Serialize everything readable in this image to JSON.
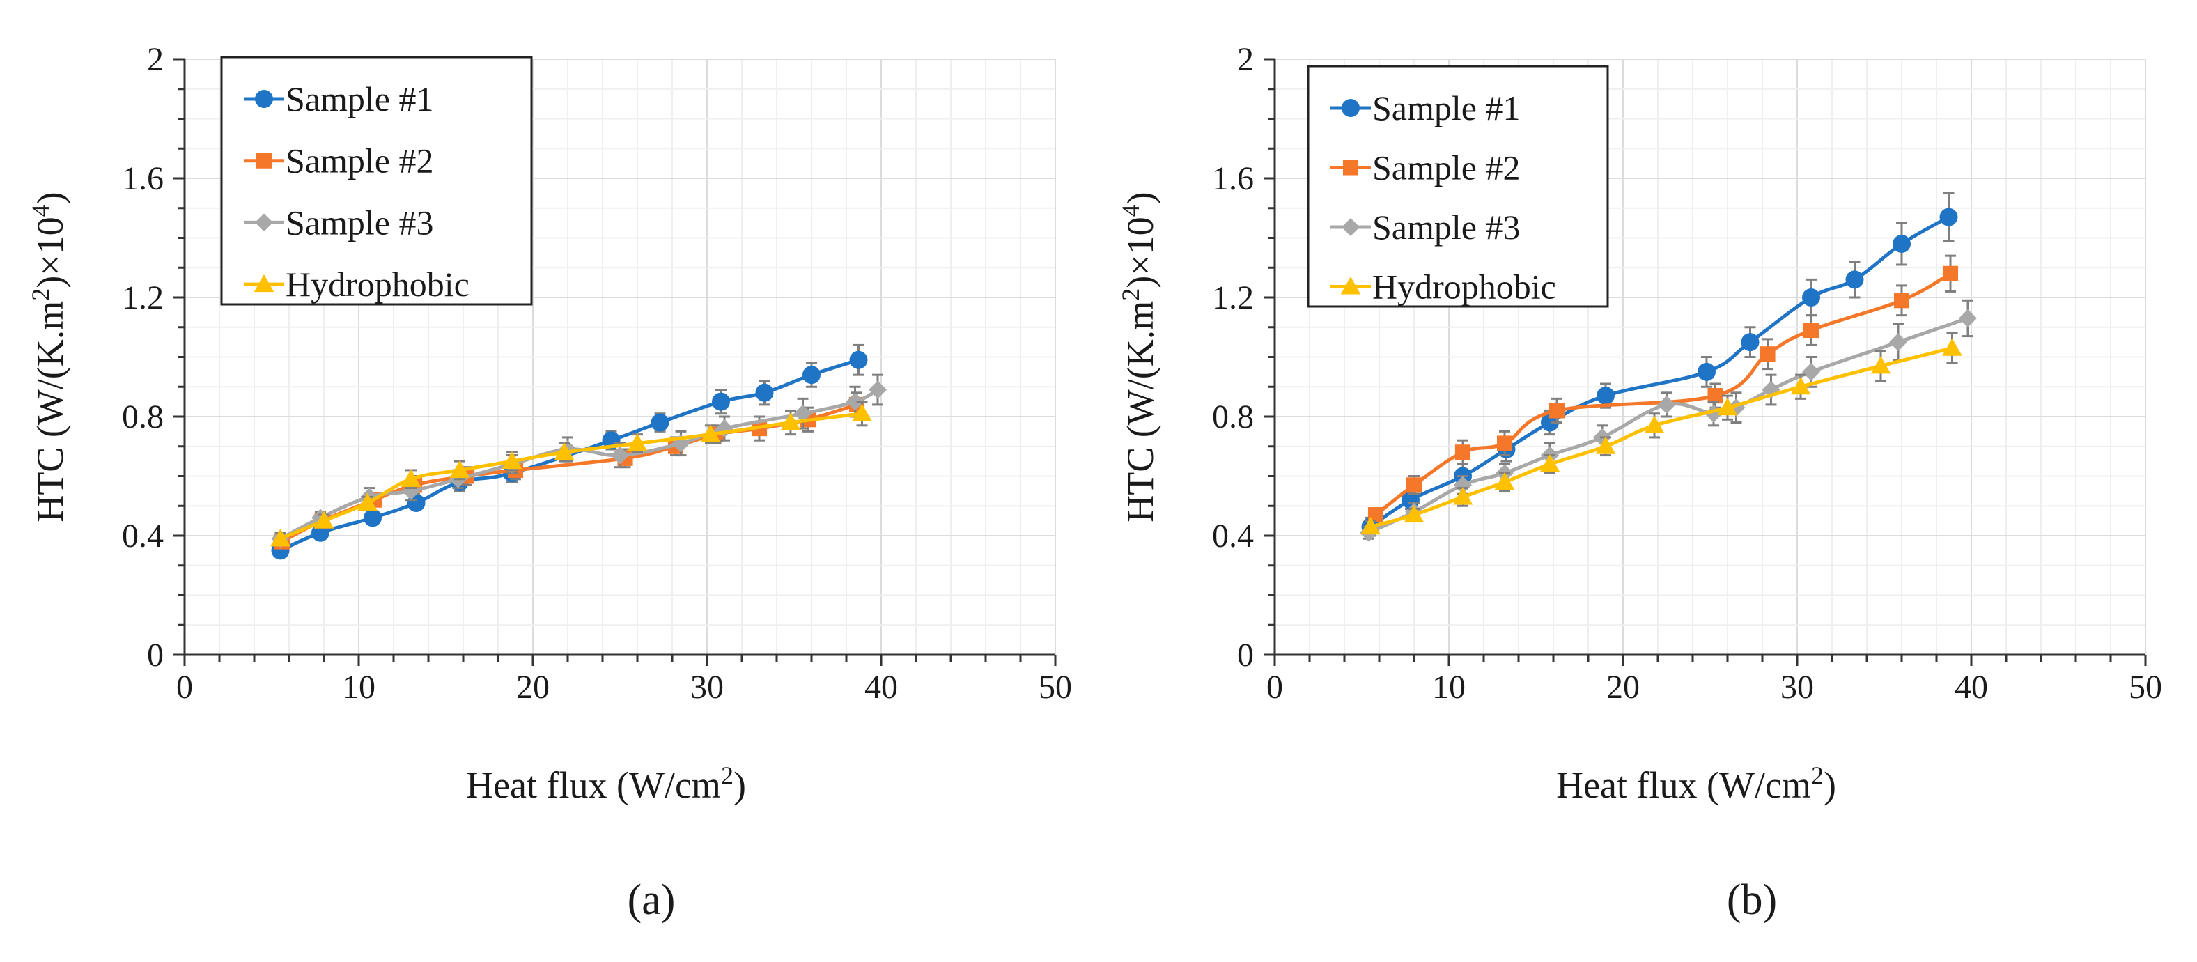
{
  "colors": {
    "sample1": "#1F74C6",
    "sample2": "#F5782A",
    "sample3": "#A8A8A8",
    "hydrophobic": "#FFC000",
    "grid_major": "#DCDCDC",
    "grid_minor": "#EFEFEF",
    "axis": "#333333",
    "error_bar": "#7F7F7F"
  },
  "chart_data": [
    {
      "type": "line",
      "panel_label": "(a)",
      "title": "",
      "xlabel": "Heat flux (W/cm",
      "xlabel_sup": "2",
      "xlabel_end": ")",
      "ylabel": "HTC (W/(K.m",
      "ylabel_sup": "2",
      "ylabel_mid": ")×10",
      "ylabel_sup2": "4",
      "ylabel_end": ")",
      "xlim": [
        0,
        50
      ],
      "ylim": [
        0,
        2
      ],
      "xticks": [
        "0",
        "10",
        "20",
        "30",
        "40",
        "50"
      ],
      "yticks": [
        "0",
        "0.4",
        "0.8",
        "1.2",
        "1.6",
        "2"
      ],
      "legend": [
        "Sample #1",
        "Sample #2",
        "Sample #3",
        "Hydrophobic"
      ],
      "legend_position": "top-left",
      "grid": true,
      "series": [
        {
          "name": "Sample #1",
          "marker": "circle",
          "color_key": "sample1",
          "x": [
            5.5,
            7.8,
            10.8,
            13.3,
            15.8,
            18.8,
            24.5,
            27.3,
            30.8,
            33.3,
            36.0,
            38.7
          ],
          "y": [
            0.35,
            0.41,
            0.46,
            0.51,
            0.58,
            0.61,
            0.72,
            0.78,
            0.85,
            0.88,
            0.94,
            0.99
          ],
          "err": [
            0.02,
            0.02,
            0.02,
            0.02,
            0.03,
            0.03,
            0.03,
            0.03,
            0.04,
            0.04,
            0.04,
            0.05
          ]
        },
        {
          "name": "Sample #2",
          "marker": "square",
          "color_key": "sample2",
          "x": [
            5.6,
            7.9,
            10.9,
            13.2,
            16.2,
            19.0,
            25.3,
            28.2,
            30.5,
            33.0,
            35.8,
            38.6
          ],
          "y": [
            0.38,
            0.45,
            0.52,
            0.57,
            0.6,
            0.62,
            0.66,
            0.7,
            0.74,
            0.76,
            0.79,
            0.84
          ],
          "err": [
            0.02,
            0.02,
            0.02,
            0.03,
            0.03,
            0.03,
            0.03,
            0.03,
            0.03,
            0.04,
            0.04,
            0.04
          ]
        },
        {
          "name": "Sample #3",
          "marker": "diamond",
          "color_key": "sample3",
          "x": [
            5.5,
            7.8,
            10.6,
            13.0,
            15.7,
            18.8,
            22.0,
            25.0,
            28.5,
            31.0,
            35.5,
            38.5,
            39.8
          ],
          "y": [
            0.39,
            0.46,
            0.53,
            0.55,
            0.59,
            0.64,
            0.69,
            0.67,
            0.71,
            0.76,
            0.81,
            0.85,
            0.89
          ],
          "err": [
            0.02,
            0.02,
            0.03,
            0.03,
            0.03,
            0.03,
            0.04,
            0.04,
            0.04,
            0.04,
            0.05,
            0.05,
            0.05
          ]
        },
        {
          "name": "Hydrophobic",
          "marker": "triangle",
          "color_key": "hydrophobic",
          "x": [
            5.5,
            8.0,
            10.5,
            13.0,
            15.8,
            18.8,
            21.8,
            26.0,
            30.2,
            34.8,
            38.9
          ],
          "y": [
            0.39,
            0.45,
            0.51,
            0.59,
            0.62,
            0.65,
            0.68,
            0.71,
            0.74,
            0.78,
            0.81
          ],
          "err": [
            0.02,
            0.02,
            0.02,
            0.03,
            0.03,
            0.03,
            0.03,
            0.03,
            0.03,
            0.04,
            0.04
          ]
        }
      ]
    },
    {
      "type": "line",
      "panel_label": "(b)",
      "title": "",
      "xlabel": "Heat flux (W/cm",
      "xlabel_sup": "2",
      "xlabel_end": ")",
      "ylabel": "HTC (W/(K.m",
      "ylabel_sup": "2",
      "ylabel_mid": ")×10",
      "ylabel_sup2": "4",
      "ylabel_end": ")",
      "xlim": [
        0,
        50
      ],
      "ylim": [
        0,
        2
      ],
      "xticks": [
        "0",
        "10",
        "20",
        "30",
        "40",
        "50"
      ],
      "yticks": [
        "0",
        "0.4",
        "0.8",
        "1.2",
        "1.6",
        "2"
      ],
      "legend": [
        "Sample #1",
        "Sample #2",
        "Sample #3",
        "Hydrophobic"
      ],
      "legend_position": "top-left",
      "grid": true,
      "series": [
        {
          "name": "Sample #1",
          "marker": "circle",
          "color_key": "sample1",
          "x": [
            5.5,
            7.8,
            10.8,
            13.3,
            15.8,
            19.0,
            24.8,
            27.3,
            30.8,
            33.3,
            36.0,
            38.7
          ],
          "y": [
            0.43,
            0.52,
            0.6,
            0.69,
            0.78,
            0.87,
            0.95,
            1.05,
            1.2,
            1.26,
            1.38,
            1.47
          ],
          "err": [
            0.03,
            0.03,
            0.04,
            0.04,
            0.04,
            0.04,
            0.05,
            0.05,
            0.06,
            0.06,
            0.07,
            0.08
          ]
        },
        {
          "name": "Sample #2",
          "marker": "square",
          "color_key": "sample2",
          "x": [
            5.8,
            8.0,
            10.8,
            13.2,
            16.2,
            25.3,
            28.3,
            30.8,
            36.0,
            38.8
          ],
          "y": [
            0.47,
            0.57,
            0.68,
            0.71,
            0.82,
            0.87,
            1.01,
            1.09,
            1.19,
            1.28
          ],
          "err": [
            0.02,
            0.03,
            0.04,
            0.04,
            0.04,
            0.04,
            0.05,
            0.05,
            0.05,
            0.06
          ]
        },
        {
          "name": "Sample #3",
          "marker": "diamond",
          "color_key": "sample3",
          "x": [
            5.4,
            8.0,
            10.8,
            13.2,
            15.8,
            18.8,
            22.5,
            25.2,
            26.5,
            28.5,
            30.8,
            35.8,
            39.8
          ],
          "y": [
            0.41,
            0.48,
            0.57,
            0.61,
            0.67,
            0.73,
            0.84,
            0.81,
            0.83,
            0.89,
            0.95,
            1.05,
            1.13
          ],
          "err": [
            0.02,
            0.03,
            0.03,
            0.03,
            0.04,
            0.04,
            0.04,
            0.04,
            0.05,
            0.05,
            0.05,
            0.06,
            0.06
          ]
        },
        {
          "name": "Hydrophobic",
          "marker": "triangle",
          "color_key": "hydrophobic",
          "x": [
            5.5,
            8.0,
            10.8,
            13.2,
            15.8,
            19.0,
            21.8,
            26.0,
            30.2,
            34.8,
            38.9
          ],
          "y": [
            0.43,
            0.47,
            0.53,
            0.58,
            0.64,
            0.7,
            0.77,
            0.83,
            0.9,
            0.97,
            1.03
          ],
          "err": [
            0.02,
            0.02,
            0.03,
            0.03,
            0.03,
            0.03,
            0.04,
            0.04,
            0.04,
            0.05,
            0.05
          ]
        }
      ]
    }
  ]
}
